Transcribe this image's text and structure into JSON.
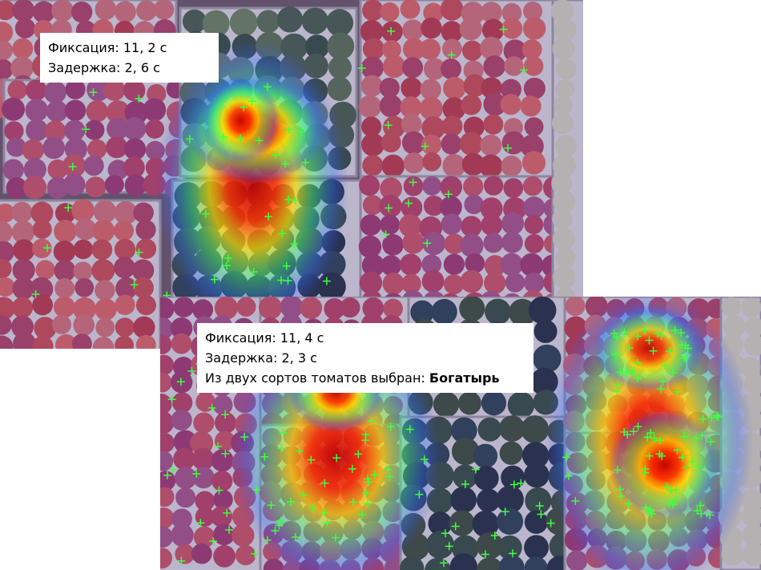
{
  "panels": [
    {
      "lines": [
        "Фиксация: 11, 2 с",
        "Задержка: 2, 6 с"
      ]
    },
    {
      "lines": [
        "Фиксация: 11, 4 с",
        "Задержка: 2, 3 с"
      ],
      "choice": {
        "label": "Из двух сортов томатов выбран:",
        "value": "Богатырь"
      }
    }
  ]
}
